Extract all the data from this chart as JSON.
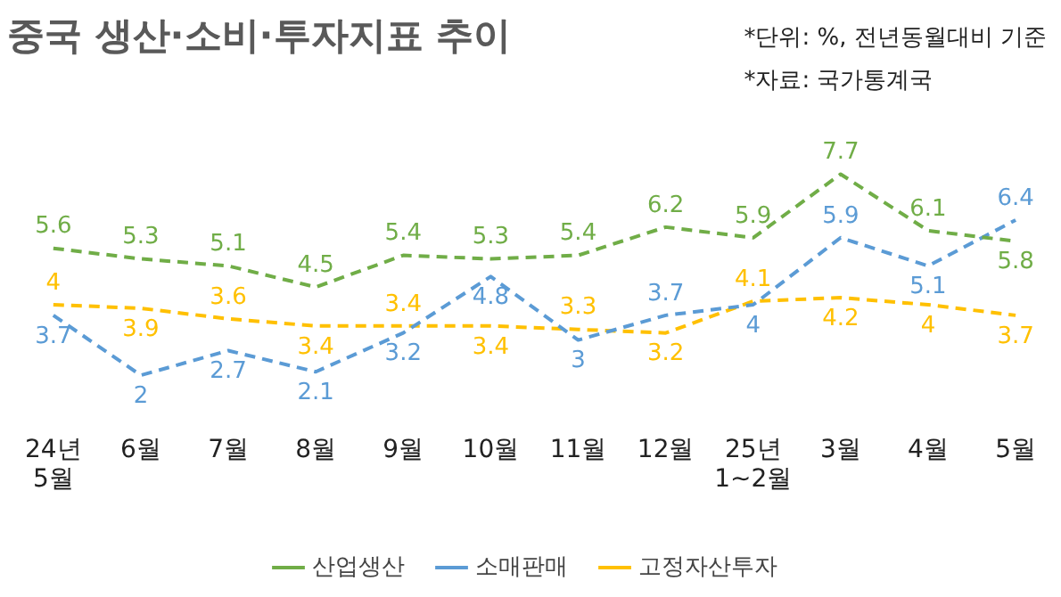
{
  "chart_data": {
    "type": "line",
    "title": "중국 생산·소비·투자지표 추이",
    "annotations": [
      "*단위: %, 전년동월대비 기준",
      "*자료: 국가통계국"
    ],
    "categories": [
      "24년\n5월",
      "6월",
      "7월",
      "8월",
      "9월",
      "10월",
      "11월",
      "12월",
      "25년\n1~2월",
      "3월",
      "4월",
      "5월"
    ],
    "series": [
      {
        "name": "산업생산",
        "color": "#70ad47",
        "values": [
          5.6,
          5.3,
          5.1,
          4.5,
          5.4,
          5.3,
          5.4,
          6.2,
          5.9,
          7.7,
          6.1,
          5.8
        ]
      },
      {
        "name": "소매판매",
        "color": "#5b9bd5",
        "values": [
          3.7,
          2,
          2.7,
          2.1,
          3.2,
          4.8,
          3,
          3.7,
          4,
          5.9,
          5.1,
          6.4
        ]
      },
      {
        "name": "고정자산투자",
        "color": "#ffc000",
        "values": [
          4,
          3.9,
          3.6,
          3.4,
          3.4,
          3.4,
          3.3,
          3.2,
          4.1,
          4.2,
          4,
          3.7
        ]
      }
    ],
    "tick_labels": "x",
    "data_labels": true,
    "legend": "bottom",
    "line_style": "dashed",
    "grid": false
  }
}
